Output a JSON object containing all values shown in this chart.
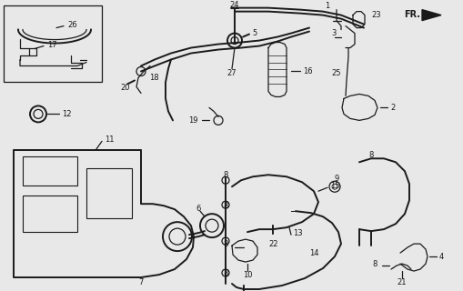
{
  "bg_color": "#e8e8e8",
  "fig_width": 5.1,
  "fig_height": 3.2,
  "dpi": 100,
  "dark": "#1a1a1a",
  "lw_main": 1.4,
  "lw_thin": 0.9
}
